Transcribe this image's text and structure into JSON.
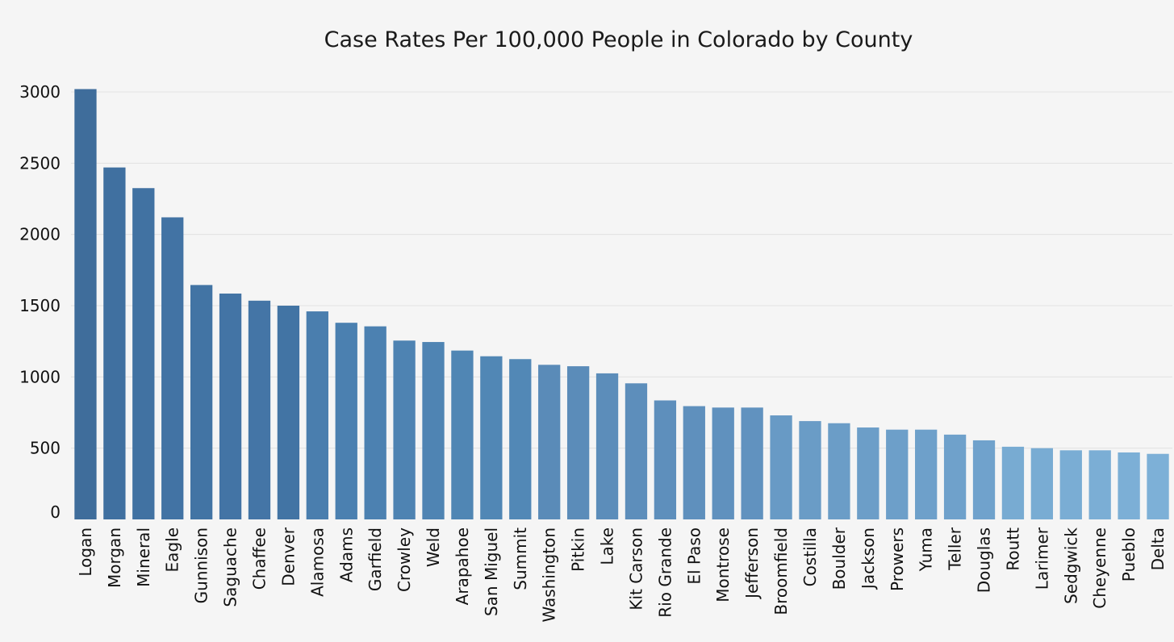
{
  "chart_data": {
    "type": "bar",
    "title": "Case Rates Per 100,000 People in Colorado by County",
    "xlabel": "",
    "ylabel": "",
    "ylim": [
      0,
      3000
    ],
    "yticks": [
      0,
      500,
      1000,
      1500,
      2000,
      2500,
      3000
    ],
    "grid": true,
    "categories": [
      "Logan",
      "Morgan",
      "Mineral",
      "Eagle",
      "Gunnison",
      "Saguache",
      "Chaffee",
      "Denver",
      "Alamosa",
      "Adams",
      "Garfield",
      "Crowley",
      "Weld",
      "Arapahoe",
      "San Miguel",
      "Summit",
      "Washington",
      "Pitkin",
      "Lake",
      "Kit Carson",
      "Rio Grande",
      "El Paso",
      "Montrose",
      "Jefferson",
      "Broomfield",
      "Costilla",
      "Boulder",
      "Jackson",
      "Prowers",
      "Yuma",
      "Teller",
      "Douglas",
      "Routt",
      "Larimer",
      "Sedgwick",
      "Cheyenne",
      "Pueblo",
      "Delta"
    ],
    "values": [
      3020,
      2470,
      2325,
      2120,
      1645,
      1585,
      1535,
      1500,
      1460,
      1380,
      1355,
      1255,
      1245,
      1185,
      1145,
      1125,
      1085,
      1075,
      1025,
      955,
      835,
      795,
      785,
      785,
      730,
      690,
      675,
      645,
      630,
      630,
      595,
      555,
      510,
      500,
      485,
      485,
      470,
      460
    ],
    "colors": [
      "#3f6d9b",
      "#4070a0",
      "#4172a2",
      "#4273a4",
      "#4274a4",
      "#4374a5",
      "#4475a6",
      "#4274a4",
      "#4a7eae",
      "#4b80b0",
      "#4c81b1",
      "#4e83b2",
      "#4f84b3",
      "#5086b4",
      "#5187b5",
      "#5288b6",
      "#5a8bb8",
      "#5b8cb9",
      "#5c8dba",
      "#5d8ebb",
      "#5e8fbc",
      "#5f90bd",
      "#6091be",
      "#6192bf",
      "#689ac5",
      "#6a9cc6",
      "#6b9dc7",
      "#6c9ec8",
      "#6d9fc9",
      "#6ea0ca",
      "#6fa1cb",
      "#70a2cc",
      "#78abd2",
      "#79acd3",
      "#7aadd4",
      "#7baed5",
      "#7cafd6",
      "#7db0d7"
    ]
  }
}
